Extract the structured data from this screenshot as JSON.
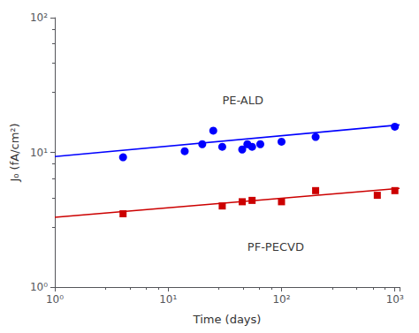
{
  "chart_data": {
    "type": "scatter",
    "xlabel": "Time (days)",
    "ylabel": "J₀ (fA/cm²)",
    "log": true,
    "grid": false,
    "xlim": [
      1,
      1100
    ],
    "ylim": [
      1,
      100
    ],
    "xticks": [
      {
        "value": 1,
        "label": "10⁰"
      },
      {
        "value": 10,
        "label": "10¹"
      },
      {
        "value": 100,
        "label": "10²"
      },
      {
        "value": 1000,
        "label": "10³"
      }
    ],
    "yticks": [
      {
        "value": 1,
        "label": "10⁰"
      },
      {
        "value": 10,
        "label": "10¹"
      },
      {
        "value": 100,
        "label": "10²"
      }
    ],
    "series": [
      {
        "type": "line",
        "color": "#0000ff",
        "line_style": "solid",
        "x": [
          1,
          1100
        ],
        "values": [
          9.3,
          16.0
        ]
      },
      {
        "type": "scatter",
        "color": "#0000ff",
        "marker": "circle",
        "x": [
          4,
          14,
          20,
          25,
          30,
          45,
          50,
          55,
          65,
          100,
          200,
          1000
        ],
        "values": [
          9.2,
          10.2,
          11.5,
          14.5,
          11.0,
          10.5,
          11.5,
          11.0,
          11.5,
          12.0,
          13.0,
          15.5
        ]
      },
      {
        "type": "line",
        "color": "#cc0000",
        "line_style": "solid",
        "x": [
          1,
          1100
        ],
        "values": [
          3.3,
          5.4
        ]
      },
      {
        "type": "scatter",
        "color": "#cc0000",
        "marker": "square",
        "x": [
          4,
          30,
          45,
          55,
          100,
          200,
          700,
          1000
        ],
        "values": [
          3.5,
          4.0,
          4.3,
          4.4,
          4.3,
          5.2,
          4.8,
          5.2
        ]
      }
    ],
    "annotations": [
      {
        "text": "PE-ALD",
        "x": 30,
        "y": 22
      },
      {
        "text": "PF-PECVD",
        "x": 50,
        "y": 2.2
      }
    ]
  }
}
